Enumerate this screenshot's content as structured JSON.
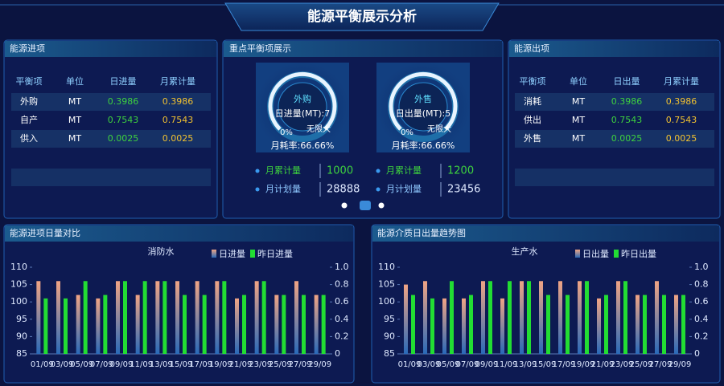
{
  "header": {
    "title": "能源平衡展示分析"
  },
  "inbound": {
    "title": "能源进项",
    "columns": [
      "平衡项",
      "单位",
      "日进量",
      "月累计量"
    ],
    "rows": [
      [
        "外购",
        "MT",
        0.3986,
        0.3986
      ],
      [
        "自产",
        "MT",
        0.7543,
        0.7543
      ],
      [
        "供入",
        "MT",
        0.0025,
        0.0025
      ]
    ]
  },
  "outbound": {
    "title": "能源出项",
    "columns": [
      "平衡项",
      "单位",
      "日出量",
      "月累计量"
    ],
    "rows": [
      [
        "消耗",
        "MT",
        0.3986,
        0.3986
      ],
      [
        "供出",
        "MT",
        0.7543,
        0.7543
      ],
      [
        "外售",
        "MT",
        0.0025,
        0.0025
      ]
    ]
  },
  "focus": {
    "title": "重点平衡项展示",
    "gauges": [
      {
        "name": "外购",
        "reading": "日进量(MT):7",
        "min": "0%",
        "max": "无限大",
        "rate": "月耗率:66.66%",
        "stats": [
          {
            "label": "月累计量",
            "value": 1000
          },
          {
            "label": "月计划量",
            "value": 28888
          }
        ]
      },
      {
        "name": "外售",
        "reading": "日出量(MT):5",
        "min": "0%",
        "max": "无限大",
        "rate": "月耗率:66.66%",
        "stats": [
          {
            "label": "月累计量",
            "value": 1200
          },
          {
            "label": "月计划量",
            "value": 23456
          }
        ]
      }
    ]
  },
  "chart_data": [
    {
      "type": "bar",
      "title": "能源进项日量对比",
      "subtitle": "消防水",
      "categories": [
        "01/09",
        "03/09",
        "05/09",
        "07/09",
        "09/09",
        "11/09",
        "13/09",
        "15/09",
        "17/09",
        "19/09",
        "21/09",
        "23/09",
        "25/09",
        "27/09",
        "29/09"
      ],
      "series": [
        {
          "name": "日进量",
          "color": "#f0a484",
          "values": [
            106,
            106,
            102,
            101,
            106,
            102,
            106,
            106,
            106,
            106,
            101,
            106,
            102,
            106,
            102
          ]
        },
        {
          "name": "昨日进量",
          "color": "#22dd33",
          "values": [
            101,
            101,
            106,
            102,
            106,
            106,
            106,
            102,
            102,
            106,
            102,
            106,
            102,
            102,
            102
          ]
        }
      ],
      "ylim": [
        85,
        110
      ],
      "yticks": [
        85,
        90,
        95,
        100,
        105,
        110
      ],
      "y2lim": [
        0,
        1
      ],
      "y2ticks": [
        0,
        0.2,
        0.4,
        0.6,
        0.8,
        {
          "value": 1,
          "label": "1.0"
        }
      ]
    },
    {
      "type": "bar",
      "title": "能源介质日出量趋势图",
      "subtitle": "生产水",
      "categories": [
        "01/09",
        "03/09",
        "05/09",
        "07/09",
        "09/09",
        "11/09",
        "13/09",
        "15/09",
        "17/09",
        "19/09",
        "21/09",
        "23/09",
        "25/09",
        "27/09",
        "29/09"
      ],
      "series": [
        {
          "name": "日出量",
          "color": "#f0a484",
          "values": [
            105,
            106,
            101,
            101,
            106,
            101,
            106,
            106,
            106,
            106,
            101,
            106,
            102,
            106,
            102
          ]
        },
        {
          "name": "昨日出量",
          "color": "#22dd33",
          "values": [
            102,
            101,
            106,
            102,
            106,
            106,
            106,
            102,
            102,
            106,
            102,
            106,
            102,
            102,
            102
          ]
        }
      ],
      "ylim": [
        85,
        110
      ],
      "yticks": [
        85,
        90,
        95,
        100,
        105,
        110
      ],
      "y2lim": [
        0,
        1
      ],
      "y2ticks": [
        0,
        0.2,
        0.4,
        0.6,
        0.8,
        {
          "value": 1,
          "label": "1.0"
        }
      ]
    }
  ]
}
